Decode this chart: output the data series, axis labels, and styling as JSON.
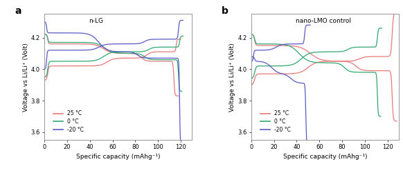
{
  "panel_a_title": "n-LG",
  "panel_b_title": "nano-LMO control",
  "xlabel": "Specific capacity (mAhg⁻¹)",
  "ylabel": "Voltage vs Li/Li⁺ (Volt)",
  "panel_label_a": "a",
  "panel_label_b": "b",
  "xlim": [
    0,
    130
  ],
  "ylim": [
    3.55,
    4.35
  ],
  "yticks": [
    3.6,
    3.8,
    4.0,
    4.2
  ],
  "xticks": [
    0,
    20,
    40,
    60,
    80,
    100,
    120
  ],
  "colors": {
    "25C": "#e87878",
    "0C": "#2ea870",
    "m20C": "#5858c8"
  },
  "legend_labels": [
    "25 °C",
    "0 °C",
    "-20 °C"
  ],
  "bg_color": "#ffffff",
  "figure_bg": "#ffffff"
}
